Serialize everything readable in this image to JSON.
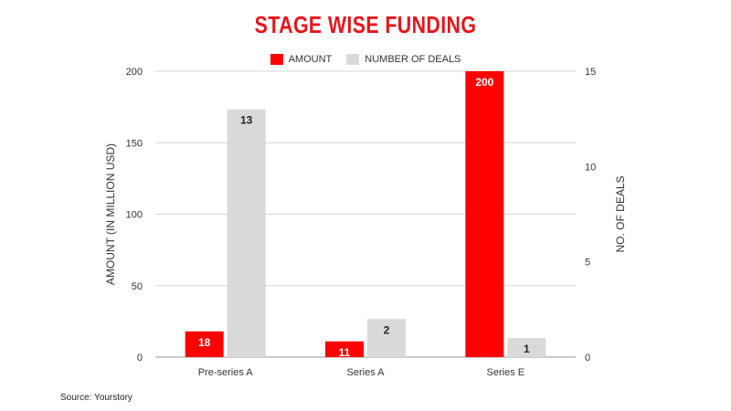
{
  "colors": {
    "amount": "#ff0000",
    "deals": "#d9d9d9",
    "title": "#e8141b",
    "grid": "#d6d6d6"
  },
  "source": "Source: Yourstory",
  "chart_data": {
    "type": "bar",
    "title": "STAGE WISE FUNDING",
    "categories": [
      "Pre-series A",
      "Series A",
      "Series E"
    ],
    "series": [
      {
        "name": "AMOUNT",
        "axis": "left",
        "values": [
          18,
          11,
          200
        ]
      },
      {
        "name": "NUMBER OF DEALS",
        "axis": "right",
        "values": [
          13,
          2,
          1
        ]
      }
    ],
    "ylabel": "AMOUNT (IN MILLION USD)",
    "ylabel_right": "NO. OF DEALS",
    "ylim": [
      0,
      200
    ],
    "ylim_right": [
      0,
      15
    ],
    "yticks": [
      0,
      50,
      100,
      150,
      200
    ],
    "yticks_right": [
      0,
      5,
      10,
      15
    ],
    "grid": true,
    "legend_position": "top"
  }
}
